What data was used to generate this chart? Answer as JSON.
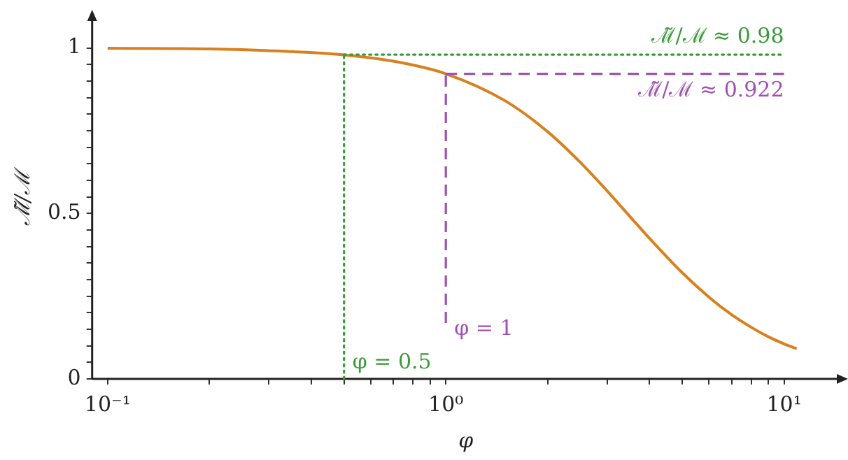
{
  "chart_data": {
    "type": "line",
    "xlabel": "φ",
    "ylabel": "ℳ̃/ℳ",
    "log": "x",
    "xlim": [
      0.09,
      14.6
    ],
    "ylim": [
      0,
      1.09
    ],
    "xticks": [
      {
        "value": 0.1,
        "label": "10⁻¹"
      },
      {
        "value": 0.2,
        "label": null
      },
      {
        "value": 0.3,
        "label": null
      },
      {
        "value": 0.4,
        "label": null
      },
      {
        "value": 0.5,
        "label": null
      },
      {
        "value": 0.6,
        "label": null
      },
      {
        "value": 0.7,
        "label": null
      },
      {
        "value": 0.8,
        "label": null
      },
      {
        "value": 0.9,
        "label": null
      },
      {
        "value": 1,
        "label": "10⁰"
      },
      {
        "value": 2,
        "label": null
      },
      {
        "value": 3,
        "label": null
      },
      {
        "value": 4,
        "label": null
      },
      {
        "value": 5,
        "label": null
      },
      {
        "value": 6,
        "label": null
      },
      {
        "value": 7,
        "label": null
      },
      {
        "value": 8,
        "label": null
      },
      {
        "value": 9,
        "label": null
      },
      {
        "value": 10,
        "label": "10¹"
      }
    ],
    "yticks": [
      0,
      {
        "value": 0.05,
        "label": null
      },
      {
        "value": 0.1,
        "label": null
      },
      {
        "value": 0.15,
        "label": null
      },
      {
        "value": 0.2,
        "label": null
      },
      {
        "value": 0.25,
        "label": null
      },
      {
        "value": 0.3,
        "label": null
      },
      {
        "value": 0.35,
        "label": null
      },
      {
        "value": 0.4,
        "label": null
      },
      {
        "value": 0.45,
        "label": null
      },
      0.5,
      {
        "value": 0.55,
        "label": null
      },
      {
        "value": 0.6,
        "label": null
      },
      {
        "value": 0.65,
        "label": null
      },
      {
        "value": 0.7,
        "label": null
      },
      {
        "value": 0.75,
        "label": null
      },
      {
        "value": 0.8,
        "label": null
      },
      {
        "value": 0.85,
        "label": null
      },
      {
        "value": 0.9,
        "label": null
      },
      {
        "value": 0.95,
        "label": null
      },
      1
    ],
    "grid": false,
    "legend": false,
    "marker": "none",
    "line_style": "solid",
    "series": [
      {
        "color": "#d9801e",
        "x": [
          0.1,
          0.2,
          0.3,
          0.5,
          0.7,
          1,
          1.5,
          2,
          2.5,
          3,
          3.5,
          4,
          5,
          6,
          7,
          8,
          9,
          10,
          10.9
        ],
        "values": [
          0.999,
          0.997,
          0.992,
          0.979,
          0.96,
          0.922,
          0.84,
          0.747,
          0.654,
          0.568,
          0.491,
          0.425,
          0.321,
          0.247,
          0.194,
          0.156,
          0.127,
          0.106,
          0.091
        ]
      }
    ],
    "ref_lines": [
      {
        "axis": "x",
        "value": 0.5,
        "label": "φ = 0.5",
        "color": "#3a9a3a",
        "line_style": "dotted"
      },
      {
        "axis": "y",
        "value": 0.98,
        "label": "ℳ̃/ℳ ≈ 0.98",
        "color": "#3a9a3a",
        "line_style": "dotted"
      },
      {
        "axis": "x",
        "value": 1,
        "label": "φ = 1",
        "color": "#a050b0",
        "line_style": "dashed"
      },
      {
        "axis": "y",
        "value": 0.922,
        "label": "ℳ̃/ℳ ≈ 0.922",
        "color": "#a050b0",
        "line_style": "dashed"
      }
    ]
  }
}
